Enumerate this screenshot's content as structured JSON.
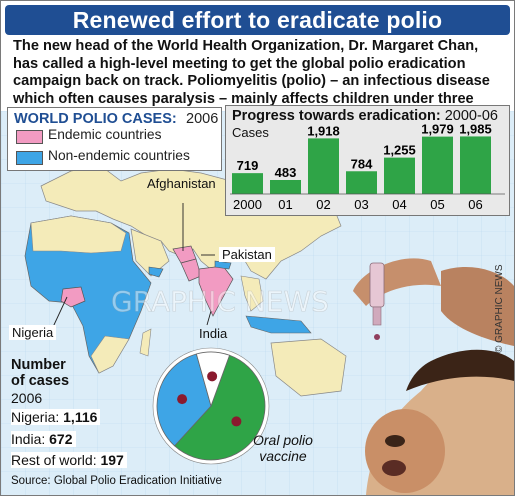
{
  "header": {
    "title": "Renewed effort to eradicate polio",
    "intro": "The new head of the World Health Organization, Dr. Margaret Chan, has called a high-level meeting to get the global polio eradication campaign back on track. Poliomyelitis (polio) – an infectious disease which often causes paralysis – mainly affects children under three years of age"
  },
  "legend": {
    "title": "WORLD POLIO CASES:",
    "year": "2006",
    "items": [
      {
        "label": "Endemic countries",
        "color": "#f29bc2"
      },
      {
        "label": "Non-endemic countries",
        "color": "#3ea5e6"
      }
    ]
  },
  "map_labels": {
    "afghanistan": "Afghanistan",
    "pakistan": "Pakistan",
    "nigeria": "Nigeria",
    "india": "India"
  },
  "cases": {
    "title_line1": "Number",
    "title_line2": "of cases",
    "year": "2006",
    "rows": [
      {
        "label": "Nigeria:",
        "value": "1,116"
      },
      {
        "label": "India:",
        "value": "672"
      },
      {
        "label": "Rest of world:",
        "value": "197"
      }
    ]
  },
  "chart_data": {
    "type": "bar",
    "title": "Progress towards eradication:",
    "subtitle": "2000-06",
    "ylabel": "Cases",
    "categories": [
      "2000",
      "01",
      "02",
      "03",
      "04",
      "05",
      "06"
    ],
    "values": [
      719,
      483,
      1918,
      784,
      1255,
      1979,
      1985
    ],
    "value_labels": [
      "719",
      "483",
      "1,918",
      "784",
      "1,255",
      "1,979",
      "1,985"
    ],
    "ylim": [
      0,
      2000
    ],
    "bar_color": "#2fa447"
  },
  "pie_data": {
    "type": "pie",
    "labels": [
      "Nigeria",
      "India",
      "Rest of world"
    ],
    "values": [
      1116,
      672,
      197
    ]
  },
  "photo_caption": {
    "line1": "Oral polio",
    "line2": "vaccine"
  },
  "footer": {
    "source": "Source: Global Polio Eradication Initiative",
    "credit": "© GRAPHIC NEWS",
    "watermark": "GRAPHIC NEWS"
  }
}
